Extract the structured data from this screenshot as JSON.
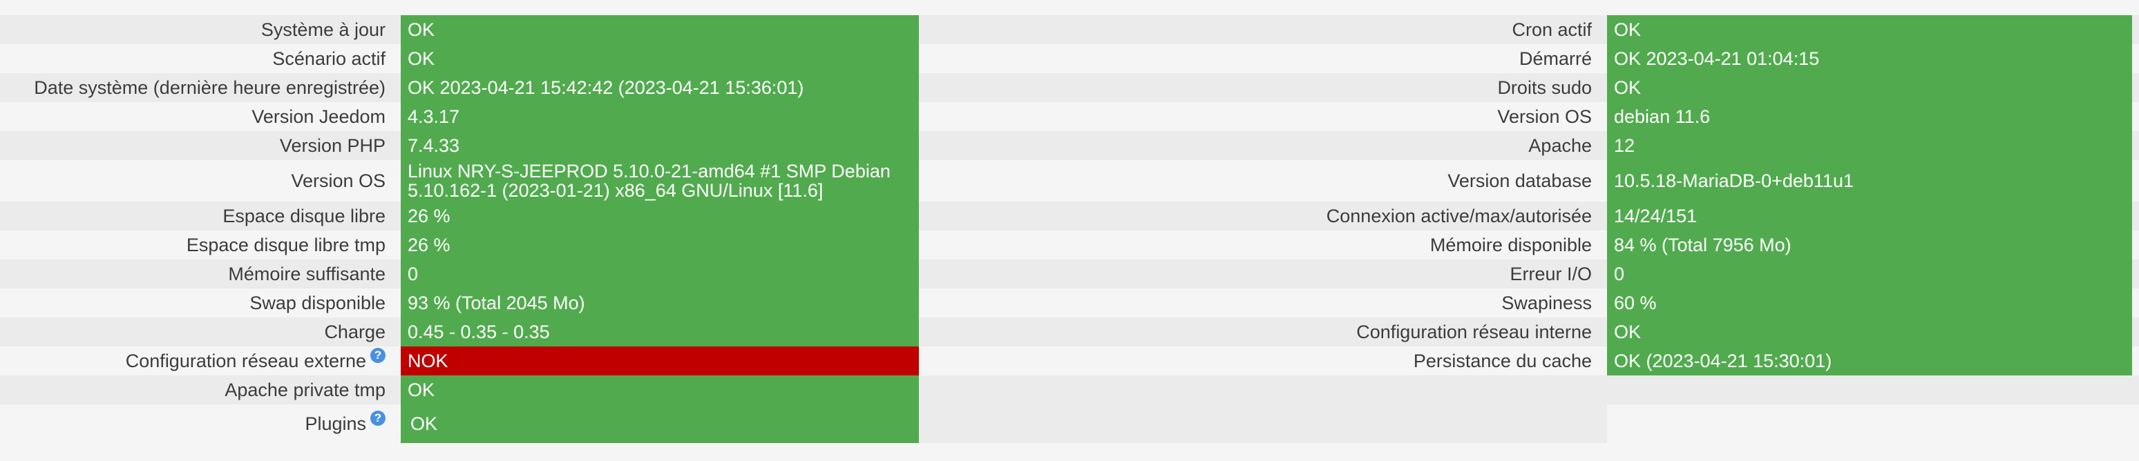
{
  "rows": [
    {
      "l1": "Système à jour",
      "v1": "OK",
      "l2": "Cron actif",
      "v2": "OK"
    },
    {
      "l1": "Scénario actif",
      "v1": "OK",
      "l2": "Démarré",
      "v2": "OK 2023-04-21 01:04:15"
    },
    {
      "l1": "Date système (dernière heure enregistrée)",
      "v1": "OK 2023-04-21 15:42:42 (2023-04-21 15:36:01)",
      "l2": "Droits sudo",
      "v2": "OK"
    },
    {
      "l1": "Version Jeedom",
      "v1": "4.3.17",
      "l2": "Version OS",
      "v2": "debian 11.6"
    },
    {
      "l1": "Version PHP",
      "v1": "7.4.33",
      "l2": "Apache",
      "v2": "12"
    },
    {
      "l1": "Version OS",
      "v1": "Linux NRY-S-JEEPROD 5.10.0-21-amd64 #1 SMP Debian 5.10.162-1 (2023-01-21) x86_64 GNU/Linux [11.6]",
      "l2": "Version database",
      "v2": "10.5.18-MariaDB-0+deb11u1"
    },
    {
      "l1": "Espace disque libre",
      "v1": "26 %",
      "l2": "Connexion active/max/autorisée",
      "v2": "14/24/151"
    },
    {
      "l1": "Espace disque libre tmp",
      "v1": "26 %",
      "l2": "Mémoire disponible",
      "v2": "84 % (Total 7956 Mo)"
    },
    {
      "l1": "Mémoire suffisante",
      "v1": "0",
      "l2": "Erreur I/O",
      "v2": "0"
    },
    {
      "l1": "Swap disponible",
      "v1": "93 % (Total 2045 Mo)",
      "l2": "Swapiness",
      "v2": "60 %"
    },
    {
      "l1": "Charge",
      "v1": "0.45 - 0.35 - 0.35",
      "l2": "Configuration réseau interne",
      "v2": "OK"
    },
    {
      "l1": "Configuration réseau externe",
      "v1": "NOK",
      "l2": "Persistance du cache",
      "v2": "OK (2023-04-21 15:30:01)"
    },
    {
      "l1": "Apache private tmp",
      "v1": "OK"
    },
    {
      "l1": "Plugins",
      "v1": "OK"
    }
  ],
  "help_icon_text": "?",
  "colors": {
    "ok": "#51ab4e",
    "nok": "#c00000"
  }
}
